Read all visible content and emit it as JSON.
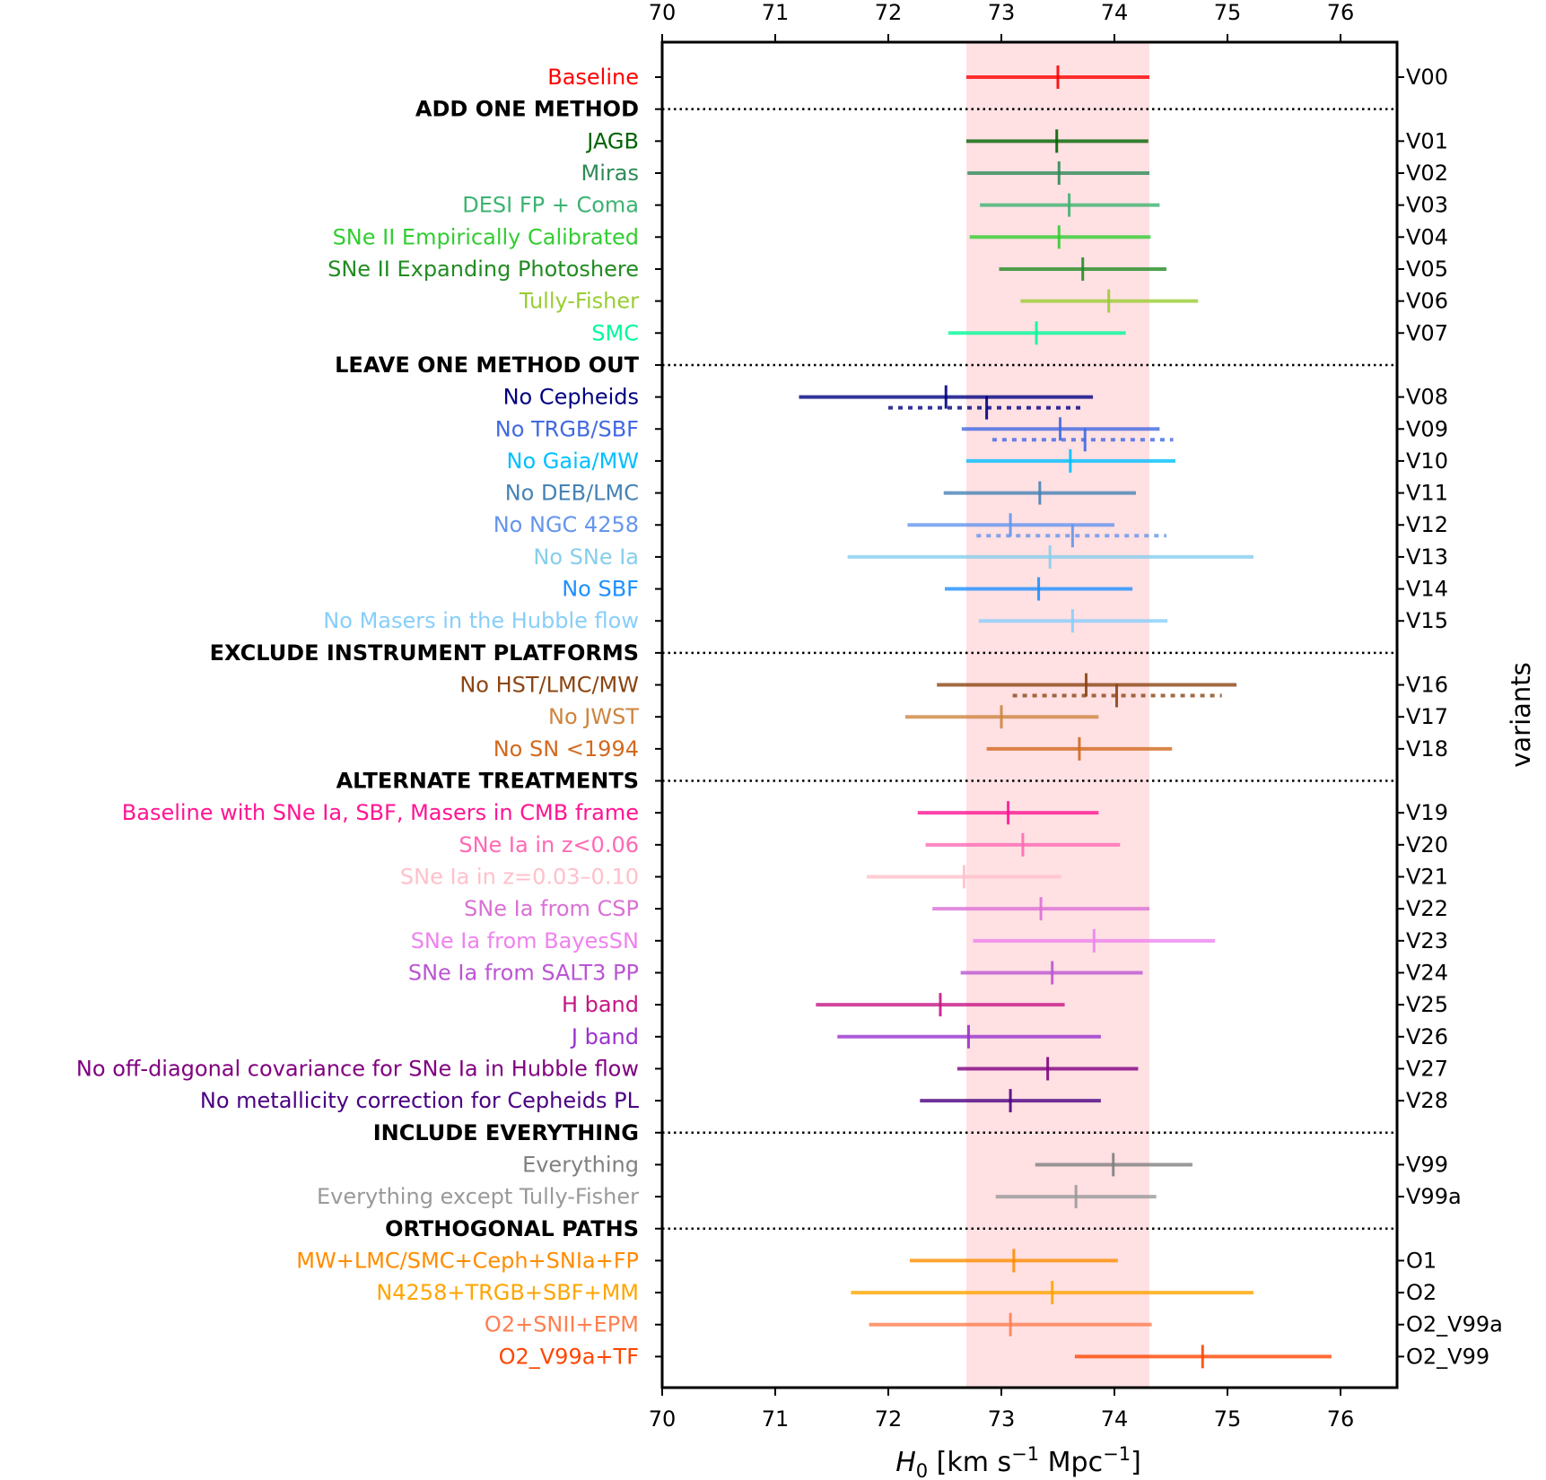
{
  "chart_data": {
    "type": "errorbar",
    "title": "",
    "xlabel_main": "H",
    "xlabel_sub": "0",
    "xlabel_rest1": " [km s",
    "xlabel_sup1": "−1",
    "xlabel_rest2": " Mpc",
    "xlabel_sup2": "−1",
    "xlabel_end": "]",
    "ylabel_right": "variants",
    "xlim": [
      70,
      76.5
    ],
    "xticks": [
      "70",
      "71",
      "72",
      "73",
      "74",
      "75",
      "76"
    ],
    "grid": false,
    "baseline_band": {
      "low": 72.69,
      "high": 74.31,
      "color": "#ffe0e3"
    },
    "rows": [
      {
        "label": "Baseline",
        "id": "V00",
        "value": 73.5,
        "low": 72.69,
        "high": 74.31,
        "color": "#ff0000"
      },
      {
        "label": "ADD ONE METHOD",
        "header": true
      },
      {
        "label": "JAGB",
        "id": "V01",
        "value": 73.49,
        "low": 72.69,
        "high": 74.3,
        "color": "#006400"
      },
      {
        "label": "Miras",
        "id": "V02",
        "value": 73.51,
        "low": 72.7,
        "high": 74.31,
        "color": "#2e8b57"
      },
      {
        "label": "DESI FP + Coma",
        "id": "V03",
        "value": 73.6,
        "low": 72.81,
        "high": 74.4,
        "color": "#3cb371"
      },
      {
        "label": "SNe II Empirically Calibrated",
        "id": "V04",
        "value": 73.51,
        "low": 72.72,
        "high": 74.32,
        "color": "#32cd32"
      },
      {
        "label": "SNe II Expanding Photoshere",
        "id": "V05",
        "value": 73.72,
        "low": 72.98,
        "high": 74.46,
        "color": "#228b22"
      },
      {
        "label": "Tully-Fisher",
        "id": "V06",
        "value": 73.95,
        "low": 73.17,
        "high": 74.74,
        "color": "#9acd32"
      },
      {
        "label": "SMC",
        "id": "V07",
        "value": 73.31,
        "low": 72.53,
        "high": 74.1,
        "color": "#00fa9a"
      },
      {
        "label": "LEAVE ONE METHOD OUT",
        "header": true
      },
      {
        "label": "No Cepheids",
        "id": "V08",
        "value": 72.51,
        "low": 71.21,
        "high": 73.81,
        "color": "#000080",
        "alt": {
          "value": 72.87,
          "low": 72.0,
          "high": 73.7
        }
      },
      {
        "label": "No TRGB/SBF",
        "id": "V09",
        "value": 73.52,
        "low": 72.65,
        "high": 74.4,
        "color": "#4169e1",
        "alt": {
          "value": 73.74,
          "low": 72.92,
          "high": 74.52
        }
      },
      {
        "label": "No Gaia/MW",
        "id": "V10",
        "value": 73.61,
        "low": 72.69,
        "high": 74.54,
        "color": "#00bfff"
      },
      {
        "label": "No DEB/LMC",
        "id": "V11",
        "value": 73.34,
        "low": 72.49,
        "high": 74.19,
        "color": "#4682b4"
      },
      {
        "label": "No NGC 4258",
        "id": "V12",
        "value": 73.08,
        "low": 72.17,
        "high": 74.0,
        "color": "#6495ed",
        "alt": {
          "value": 73.63,
          "low": 72.78,
          "high": 74.46
        }
      },
      {
        "label": "No SNe Ia",
        "id": "V13",
        "value": 73.43,
        "low": 71.64,
        "high": 75.23,
        "color": "#87ceeb"
      },
      {
        "label": "No SBF",
        "id": "V14",
        "value": 73.33,
        "low": 72.5,
        "high": 74.16,
        "color": "#1e90ff"
      },
      {
        "label": "No Masers in the Hubble flow",
        "id": "V15",
        "value": 73.63,
        "low": 72.8,
        "high": 74.47,
        "color": "#87cefa"
      },
      {
        "label": "EXCLUDE INSTRUMENT PLATFORMS",
        "header": true
      },
      {
        "label": "No HST/LMC/MW",
        "id": "V16",
        "value": 73.75,
        "low": 72.43,
        "high": 75.08,
        "color": "#8b4513",
        "alt": {
          "value": 74.02,
          "low": 73.1,
          "high": 74.95
        }
      },
      {
        "label": "No JWST",
        "id": "V17",
        "value": 73.0,
        "low": 72.15,
        "high": 73.86,
        "color": "#cd853f"
      },
      {
        "label": "No SN <1994",
        "id": "V18",
        "value": 73.69,
        "low": 72.87,
        "high": 74.51,
        "color": "#d2691e"
      },
      {
        "label": "ALTERNATE TREATMENTS",
        "header": true
      },
      {
        "label": "Baseline with SNe Ia, SBF, Masers in CMB frame",
        "id": "V19",
        "value": 73.06,
        "low": 72.26,
        "high": 73.86,
        "color": "#ff1493"
      },
      {
        "label": "SNe Ia in z<0.06",
        "id": "V20",
        "value": 73.19,
        "low": 72.33,
        "high": 74.05,
        "color": "#ff69b4"
      },
      {
        "label": "SNe Ia in z=0.03–0.10",
        "id": "V21",
        "value": 72.67,
        "low": 71.81,
        "high": 73.53,
        "color": "#ffc0cb"
      },
      {
        "label": "SNe Ia from CSP",
        "id": "V22",
        "value": 73.35,
        "low": 72.39,
        "high": 74.31,
        "color": "#da70d6"
      },
      {
        "label": "SNe Ia from BayesSN",
        "id": "V23",
        "value": 73.82,
        "low": 72.75,
        "high": 74.89,
        "color": "#ee82ee"
      },
      {
        "label": "SNe Ia from SALT3 PP",
        "id": "V24",
        "value": 73.45,
        "low": 72.64,
        "high": 74.25,
        "color": "#ba55d3"
      },
      {
        "label": "H band",
        "id": "V25",
        "value": 72.46,
        "low": 71.36,
        "high": 73.56,
        "color": "#c71585"
      },
      {
        "label": "J band",
        "id": "V26",
        "value": 72.71,
        "low": 71.55,
        "high": 73.88,
        "color": "#9932cc"
      },
      {
        "label": "No off-diagonal covariance for SNe Ia in Hubble flow",
        "id": "V27",
        "value": 73.41,
        "low": 72.61,
        "high": 74.21,
        "color": "#800080"
      },
      {
        "label": "No metallicity correction for Cepheids PL",
        "id": "V28",
        "value": 73.08,
        "low": 72.28,
        "high": 73.88,
        "color": "#4b0082"
      },
      {
        "label": "INCLUDE EVERYTHING",
        "header": true
      },
      {
        "label": "Everything",
        "id": "V99",
        "value": 73.99,
        "low": 73.3,
        "high": 74.69,
        "color": "#808080"
      },
      {
        "label": "Everything except Tully-Fisher",
        "id": "V99a",
        "value": 73.66,
        "low": 72.95,
        "high": 74.37,
        "color": "#999999"
      },
      {
        "label": "ORTHOGONAL PATHS",
        "header": true
      },
      {
        "label": "MW+LMC/SMC+Ceph+SNIa+FP",
        "id": "O1",
        "value": 73.11,
        "low": 72.19,
        "high": 74.03,
        "color": "#ff8c00"
      },
      {
        "label": "N4258+TRGB+SBF+MM",
        "id": "O2",
        "value": 73.45,
        "low": 71.67,
        "high": 75.23,
        "color": "#ffa500"
      },
      {
        "label": "O2+SNII+EPM",
        "id": "O2_V99a",
        "value": 73.08,
        "low": 71.83,
        "high": 74.33,
        "color": "#ff7f50"
      },
      {
        "label": "O2_V99a+TF",
        "id": "O2_V99",
        "value": 74.78,
        "low": 73.65,
        "high": 75.92,
        "color": "#ff4500"
      }
    ]
  }
}
